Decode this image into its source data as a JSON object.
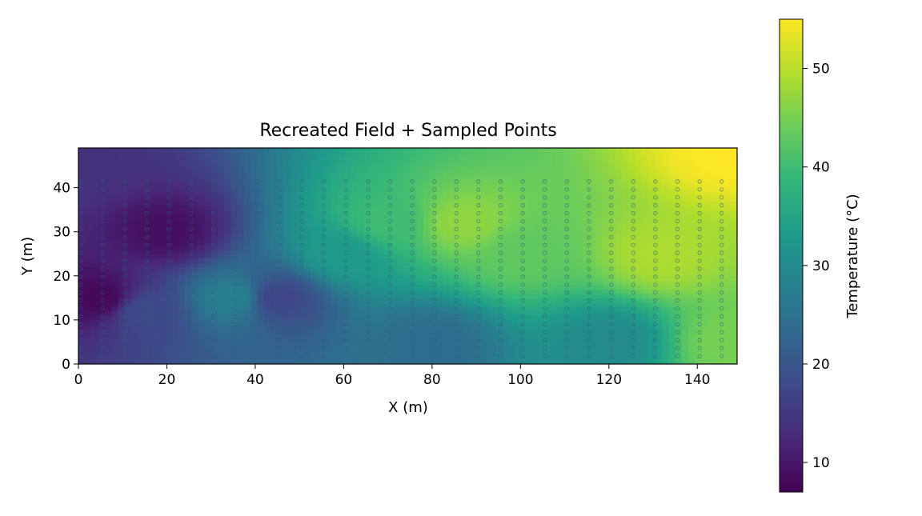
{
  "chart_data": {
    "type": "heatmap",
    "title": "Recreated Field + Sampled Points",
    "xlabel": "X (m)",
    "ylabel": "Y (m)",
    "xlim": [
      0,
      149
    ],
    "ylim": [
      0,
      49
    ],
    "xticks": [
      0,
      20,
      40,
      60,
      80,
      100,
      120,
      140
    ],
    "yticks": [
      0,
      10,
      20,
      30,
      40
    ],
    "grid": false,
    "colormap": "viridis",
    "colorbar": {
      "label": "Temperature (°C)",
      "range": [
        7,
        55
      ],
      "ticks": [
        10,
        20,
        30,
        40,
        50
      ]
    },
    "field_value_range": [
      7,
      55
    ],
    "field_description_points": [
      {
        "x": 5,
        "y": 15,
        "value": 8
      },
      {
        "x": 20,
        "y": 30,
        "value": 9
      },
      {
        "x": 15,
        "y": 12,
        "value": 18
      },
      {
        "x": 2,
        "y": 47,
        "value": 14
      },
      {
        "x": 35,
        "y": 15,
        "value": 28
      },
      {
        "x": 45,
        "y": 15,
        "value": 17
      },
      {
        "x": 60,
        "y": 25,
        "value": 33
      },
      {
        "x": 70,
        "y": 32,
        "value": 40
      },
      {
        "x": 87,
        "y": 32,
        "value": 47
      },
      {
        "x": 100,
        "y": 25,
        "value": 43
      },
      {
        "x": 132,
        "y": 25,
        "value": 49
      },
      {
        "x": 148,
        "y": 48,
        "value": 55
      },
      {
        "x": 148,
        "y": 5,
        "value": 45
      },
      {
        "x": 80,
        "y": 5,
        "value": 24
      },
      {
        "x": 120,
        "y": 5,
        "value": 30
      }
    ],
    "sampled_points": {
      "marker": "small circle",
      "sweep_columns_x": [
        0.5,
        5.5,
        10.5,
        15.5,
        20.5,
        25.5,
        30.5,
        35.5,
        40.5,
        45.5,
        50.5,
        55.5,
        60.5,
        65.5,
        70.5,
        75.5,
        80.5,
        85.5,
        90.5,
        95.5,
        100.5,
        105.5,
        110.5,
        115.5,
        120.5,
        125.5,
        130.5,
        135.5,
        140.5,
        145.5
      ],
      "y_range": [
        0,
        43
      ],
      "y_step": 1.8
    }
  },
  "colors": {
    "viridis_stops": [
      "#440154",
      "#482878",
      "#3e4989",
      "#31688e",
      "#26828e",
      "#1f9e89",
      "#35b779",
      "#6ece58",
      "#b5de2b",
      "#fde725"
    ]
  }
}
